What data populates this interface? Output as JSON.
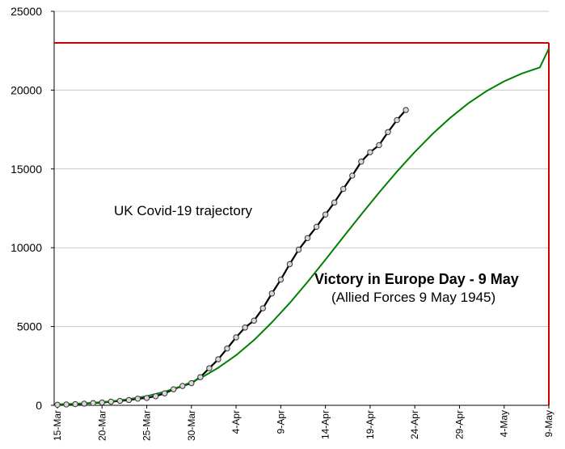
{
  "chart_data": {
    "type": "line",
    "x_ticks": [
      "15-Mar",
      "20-Mar",
      "25-Mar",
      "30-Mar",
      "4-Apr",
      "9-Apr",
      "14-Apr",
      "19-Apr",
      "24-Apr",
      "29-Apr",
      "4-May",
      "9-May"
    ],
    "y_ticks": [
      "0",
      "5000",
      "10000",
      "15000",
      "20000",
      "25000"
    ],
    "ylim": [
      0,
      25000
    ],
    "x_range_days": [
      0,
      55
    ],
    "grid": "horizontal",
    "annotations": [
      "UK Covid-19 trajectory",
      "Victory in Europe Day - 9 May",
      "(Allied Forces 9 May 1945)"
    ],
    "reference": {
      "target_y": 23000,
      "vline_x_day": 55,
      "color": "#cc0000"
    },
    "series": [
      {
        "kind": "observed",
        "color": "#000000",
        "x_day": [
          0,
          1,
          2,
          3,
          4,
          5,
          6,
          7,
          8,
          9,
          10,
          11,
          12,
          13,
          14,
          15,
          16,
          17,
          18,
          19,
          20,
          21,
          22,
          23,
          24,
          25,
          26,
          27,
          28,
          29,
          30,
          31,
          32,
          33,
          34,
          35,
          36,
          37
        ],
        "values": [
          35,
          55,
          75,
          104,
          144,
          177,
          233,
          281,
          335,
          422,
          465,
          578,
          759,
          1019,
          1228,
          1408,
          1789,
          2352,
          2921,
          3605,
          4313,
          4934,
          5373,
          6159,
          7097,
          7978,
          8958,
          9875,
          10612,
          11329,
          12107,
          12868,
          13729,
          14576,
          15464,
          16060,
          16509,
          17337
        ]
      },
      {
        "kind": "observed-later",
        "color": "#000000",
        "x_day": [
          38,
          39
        ],
        "values": [
          18100,
          18738
        ]
      },
      {
        "kind": "fitted",
        "color": "#008000",
        "x_day": [
          0,
          2,
          4,
          6,
          8,
          10,
          12,
          14,
          16,
          18,
          20,
          22,
          24,
          26,
          28,
          30,
          32,
          34,
          36,
          38,
          40,
          42,
          44,
          46,
          48,
          50,
          52,
          54,
          55
        ],
        "values": [
          60,
          100,
          160,
          250,
          390,
          580,
          860,
          1240,
          1720,
          2380,
          3180,
          4140,
          5260,
          6490,
          7830,
          9240,
          10680,
          12110,
          13500,
          14830,
          16080,
          17230,
          18260,
          19170,
          19930,
          20560,
          21060,
          21440,
          22640
        ]
      }
    ]
  }
}
